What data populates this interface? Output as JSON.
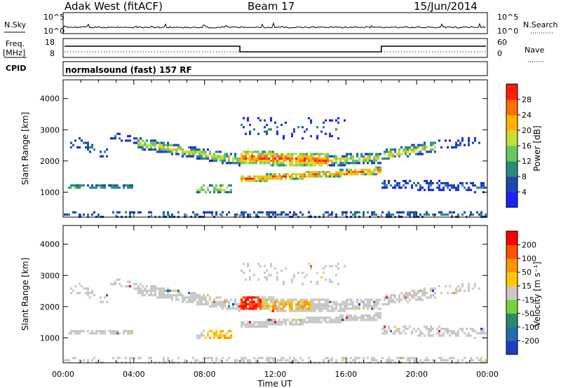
{
  "header": {
    "station": "Adak West (fitACF)",
    "beam": "Beam 17",
    "date": "15/Jun/2014"
  },
  "panels": {
    "nsky": {
      "label": "N.Sky",
      "right_label": "N.Search",
      "ticks": [
        "10^5",
        "10^0"
      ]
    },
    "freq": {
      "label_line1": "Freq.",
      "label_line2": "[MHz]",
      "left_ticks": [
        "18",
        "8"
      ],
      "right_label": "Nave",
      "right_ticks": [
        "60",
        "0"
      ]
    },
    "cpid": {
      "label": "CPID",
      "text": "normalsound (fast) 157 RF"
    }
  },
  "colors": {
    "power": [
      "#1e1eff",
      "#1e46b4",
      "#288c78",
      "#64c864",
      "#c8dc32",
      "#ffb400",
      "#ff6e00",
      "#ff1e00"
    ],
    "velocity": [
      "#1e3cc8",
      "#1e6eb4",
      "#288c64",
      "#78d23c",
      "#c8c8c8",
      "#ffc800",
      "#ff9600",
      "#ff5000",
      "#ff0000"
    ]
  },
  "chart_data": [
    {
      "type": "heatmap",
      "quantity": "power",
      "ylabel": "Slant Range [km]",
      "ylim": [
        200,
        4600
      ],
      "yticks": [
        1000,
        2000,
        3000,
        4000
      ],
      "xlim": [
        0,
        24
      ],
      "xtick_labels": [
        "00:00",
        "04:00",
        "08:00",
        "12:00",
        "16:00",
        "20:00",
        "00:00"
      ],
      "colorbar": {
        "label": "Power [dB]",
        "ticks": [
          "28",
          "24",
          "20",
          "16",
          "12",
          "8",
          "4"
        ],
        "range": [
          0,
          32
        ]
      }
    },
    {
      "type": "heatmap",
      "quantity": "velocity",
      "ylabel": "Slant Range [km]",
      "ylim": [
        200,
        4600
      ],
      "yticks": [
        1000,
        2000,
        3000,
        4000
      ],
      "xlim": [
        0,
        24
      ],
      "xtick_labels": [
        "00:00",
        "04:00",
        "08:00",
        "12:00",
        "16:00",
        "20:00",
        "00:00"
      ],
      "xlabel": "Time UT",
      "colorbar": {
        "label": "Velocity [m s⁻¹]",
        "ticks": [
          "200",
          "100",
          "50",
          "15",
          "-15",
          "-50",
          "-100",
          "-200"
        ],
        "range": [
          -250,
          250
        ]
      }
    }
  ]
}
